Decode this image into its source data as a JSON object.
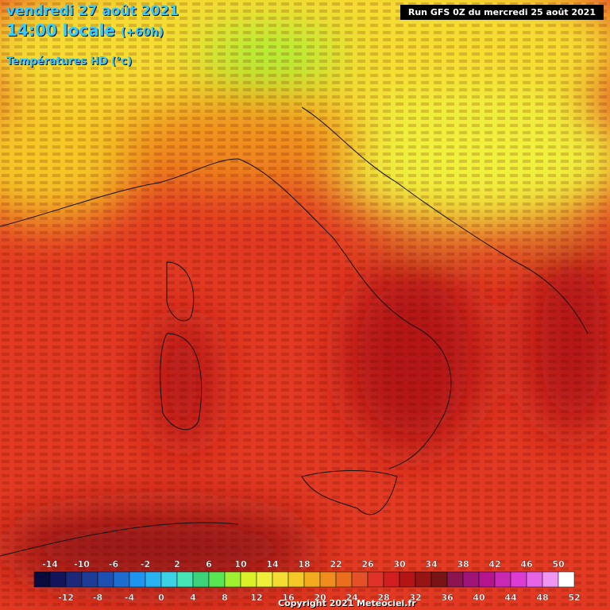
{
  "header": {
    "date": "vendredi 27 août 2021",
    "time": "14:00 locale",
    "lead": "(+60h)",
    "field": "Températures HD (°c)",
    "run": "Run GFS 0Z du mercredi 25 août 2021"
  },
  "footer": {
    "copyright": "Copyright 2021 Meteociel.fr"
  },
  "legend": {
    "labels_top": [
      -14,
      -10,
      -6,
      -2,
      2,
      6,
      10,
      14,
      18,
      22,
      26,
      30,
      34,
      38,
      42,
      46,
      50
    ],
    "labels_bottom": [
      -12,
      -8,
      -4,
      0,
      4,
      8,
      12,
      16,
      20,
      24,
      28,
      32,
      36,
      40,
      44,
      48,
      52
    ],
    "colors": [
      "#0a0a3c",
      "#14145a",
      "#1e2878",
      "#1e3c96",
      "#1e50b4",
      "#1e6ed2",
      "#1e96f0",
      "#28b4f0",
      "#3cd2e6",
      "#46e6b4",
      "#3cd278",
      "#5ae650",
      "#a0f032",
      "#dcf028",
      "#f0f03c",
      "#f5dc32",
      "#f5c828",
      "#f5aa1e",
      "#f08c1e",
      "#eb6e1e",
      "#e65028",
      "#e13228",
      "#d21e1e",
      "#b41414",
      "#961414",
      "#781414",
      "#8c1450",
      "#a01478",
      "#b4148c",
      "#c828b4",
      "#dc3cd2",
      "#e664e6",
      "#f096f0",
      "#ffffff"
    ]
  }
}
